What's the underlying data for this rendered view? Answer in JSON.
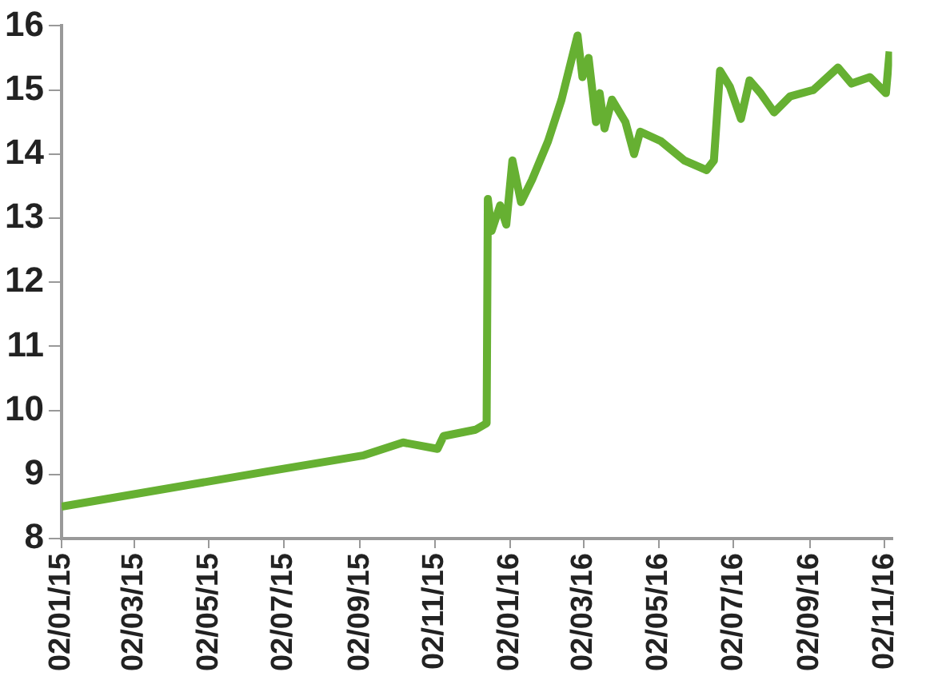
{
  "chart_data": {
    "type": "line",
    "grid": false,
    "x": [
      "2015-01-02",
      "2015-06-19",
      "2015-09-05",
      "2015-10-07",
      "2015-11-04",
      "2015-11-09",
      "2015-12-05",
      "2015-12-14",
      "2015-12-15",
      "2015-12-18",
      "2015-12-25",
      "2015-12-30",
      "2016-01-04",
      "2016-01-11",
      "2016-01-20",
      "2016-02-02",
      "2016-02-13",
      "2016-02-26",
      "2016-03-01",
      "2016-03-06",
      "2016-03-12",
      "2016-03-15",
      "2016-03-19",
      "2016-03-25",
      "2016-04-05",
      "2016-04-12",
      "2016-04-17",
      "2016-05-04",
      "2016-05-23",
      "2016-06-10",
      "2016-06-16",
      "2016-06-21",
      "2016-06-29",
      "2016-07-08",
      "2016-07-15",
      "2016-07-24",
      "2016-08-04",
      "2016-08-17",
      "2016-09-05",
      "2016-09-25",
      "2016-10-06",
      "2016-10-21",
      "2016-11-03",
      "2016-11-06"
    ],
    "series": [
      {
        "color": "#66b032",
        "values": [
          8.5,
          9.05,
          9.3,
          9.5,
          9.4,
          9.6,
          9.7,
          9.8,
          13.3,
          12.8,
          13.2,
          12.9,
          13.9,
          13.25,
          13.6,
          14.2,
          14.85,
          15.85,
          15.2,
          15.5,
          14.5,
          14.95,
          14.4,
          14.85,
          14.5,
          14.0,
          14.35,
          14.2,
          13.9,
          13.75,
          13.9,
          15.3,
          15.05,
          14.55,
          15.15,
          14.95,
          14.65,
          14.9,
          15.0,
          15.35,
          15.1,
          15.2,
          14.95,
          15.6
        ]
      }
    ],
    "xlim": [
      "2015-01-02",
      "2016-11-08"
    ],
    "xticks": [
      {
        "value": "2015-01-02",
        "label": "02/01/15"
      },
      {
        "value": "2015-03-02",
        "label": "02/03/15"
      },
      {
        "value": "2015-05-02",
        "label": "02/05/15"
      },
      {
        "value": "2015-07-02",
        "label": "02/07/15"
      },
      {
        "value": "2015-09-02",
        "label": "02/09/15"
      },
      {
        "value": "2015-11-02",
        "label": "02/11/15"
      },
      {
        "value": "2016-01-02",
        "label": "02/01/16"
      },
      {
        "value": "2016-03-02",
        "label": "02/03/16"
      },
      {
        "value": "2016-05-02",
        "label": "02/05/16"
      },
      {
        "value": "2016-07-02",
        "label": "02/07/16"
      },
      {
        "value": "2016-09-02",
        "label": "02/09/16"
      },
      {
        "value": "2016-11-02",
        "label": "02/11/16"
      }
    ],
    "ylim": [
      8,
      16
    ],
    "yticks": [
      8,
      9,
      10,
      11,
      12,
      13,
      14,
      15,
      16
    ]
  }
}
